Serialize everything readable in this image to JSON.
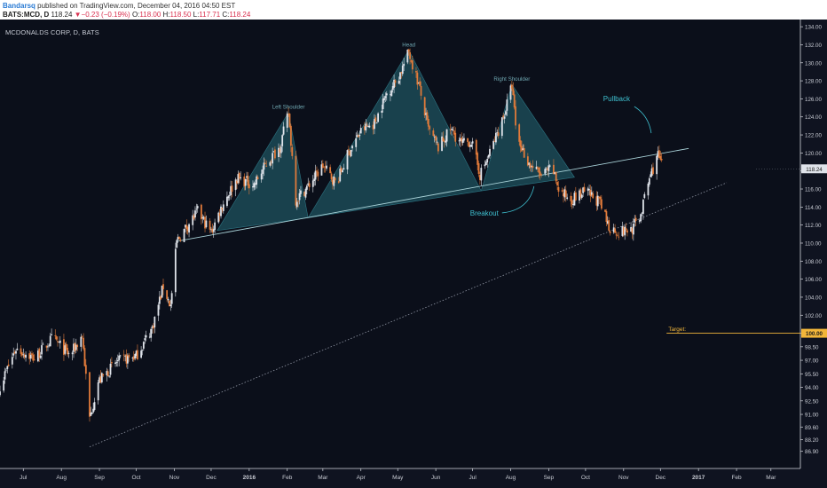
{
  "header": {
    "author": "Bandarsq",
    "published_text": "published on TradingView.com, December 04, 2016 04:50 EST",
    "symbol": "BATS:MCD, D",
    "last": "118.24",
    "change": "▼−0.23 (−0.19%)",
    "open_label": "O:",
    "open": "118.00",
    "high_label": "H:",
    "high": "118.50",
    "low_label": "L:",
    "low": "117.71",
    "close_label": "C:",
    "close": "118.24"
  },
  "colors": {
    "background": "#0b0f1a",
    "up_candle": "#dfe3ea",
    "down_candle": "#e07a3a",
    "pattern_fill": "#1e5561",
    "neckline": "#a9d2d8",
    "support_line": "#8f95a3",
    "annotation": "#3fc0d0",
    "target": "#f2b63a"
  },
  "chart_data": {
    "type": "candlestick",
    "title": "MCDONALDS CORP, D, BATS",
    "ylim": [
      85.0,
      134.8
    ],
    "y_ticks": [
      "86.90",
      "88.20",
      "89.60",
      "91.00",
      "92.50",
      "94.00",
      "95.50",
      "97.00",
      "98.50",
      "100.00",
      "102.00",
      "104.00",
      "106.00",
      "108.00",
      "110.00",
      "112.00",
      "114.00",
      "116.00",
      "118.00",
      "120.00",
      "122.00",
      "124.00",
      "126.00",
      "128.00",
      "130.00",
      "132.00",
      "134.00"
    ],
    "x_ticks": [
      "Jul",
      "Aug",
      "Sep",
      "Oct",
      "Nov",
      "Dec",
      "2016",
      "Feb",
      "Mar",
      "Apr",
      "May",
      "Jun",
      "Jul",
      "Aug",
      "Sep",
      "Oct",
      "Nov",
      "Dec",
      "2017",
      "Feb",
      "Mar"
    ],
    "x_range": [
      "2015-06-12",
      "2017-03-25"
    ],
    "current_price": "118.24",
    "target_price": "100.00",
    "anchors": [
      [
        "2015-06-12",
        94.2
      ],
      [
        "2015-06-25",
        98.3
      ],
      [
        "2015-07-10",
        97.2
      ],
      [
        "2015-07-25",
        99.5
      ],
      [
        "2015-08-08",
        97.5
      ],
      [
        "2015-08-18",
        99.8
      ],
      [
        "2015-08-24",
        90.5
      ],
      [
        "2015-08-31",
        94.6
      ],
      [
        "2015-09-15",
        96.8
      ],
      [
        "2015-10-01",
        97.5
      ],
      [
        "2015-10-14",
        100.6
      ],
      [
        "2015-10-23",
        105.2
      ],
      [
        "2015-10-29",
        103.0
      ],
      [
        "2015-11-03",
        110.2
      ],
      [
        "2015-11-12",
        112.0
      ],
      [
        "2015-11-20",
        113.5
      ],
      [
        "2015-12-01",
        111.2
      ],
      [
        "2015-12-10",
        114.2
      ],
      [
        "2015-12-22",
        117.2
      ],
      [
        "2016-01-05",
        116.5
      ],
      [
        "2016-01-15",
        118.8
      ],
      [
        "2016-01-26",
        120.7
      ],
      [
        "2016-02-02",
        124.4
      ],
      [
        "2016-02-08",
        114.8
      ],
      [
        "2016-02-18",
        116.3
      ],
      [
        "2016-03-01",
        118.6
      ],
      [
        "2016-03-12",
        116.6
      ],
      [
        "2016-03-22",
        120.1
      ],
      [
        "2016-04-02",
        122.6
      ],
      [
        "2016-04-12",
        123.3
      ],
      [
        "2016-04-22",
        126.6
      ],
      [
        "2016-05-01",
        128.2
      ],
      [
        "2016-05-10",
        131.2
      ],
      [
        "2016-05-18",
        127.6
      ],
      [
        "2016-05-26",
        122.6
      ],
      [
        "2016-06-03",
        120.6
      ],
      [
        "2016-06-13",
        122.6
      ],
      [
        "2016-06-22",
        121.0
      ],
      [
        "2016-06-30",
        121.3
      ],
      [
        "2016-07-07",
        117.6
      ],
      [
        "2016-07-12",
        119.0
      ],
      [
        "2016-07-20",
        121.8
      ],
      [
        "2016-07-27",
        124.4
      ],
      [
        "2016-08-02",
        127.5
      ],
      [
        "2016-08-06",
        121.7
      ],
      [
        "2016-08-16",
        118.8
      ],
      [
        "2016-08-26",
        117.5
      ],
      [
        "2016-09-04",
        118.3
      ],
      [
        "2016-09-10",
        115.6
      ],
      [
        "2016-09-20",
        114.9
      ],
      [
        "2016-10-01",
        115.7
      ],
      [
        "2016-10-12",
        114.6
      ],
      [
        "2016-10-20",
        111.8
      ],
      [
        "2016-10-28",
        111.2
      ],
      [
        "2016-11-08",
        111.6
      ],
      [
        "2016-11-15",
        113.2
      ],
      [
        "2016-11-22",
        117.2
      ],
      [
        "2016-11-29",
        119.8
      ],
      [
        "2016-12-03",
        118.2
      ]
    ],
    "annotations": [
      {
        "label": "Left Shoulder",
        "date": "2016-02-02",
        "price": 124.5
      },
      {
        "label": "Head",
        "date": "2016-05-10",
        "price": 131.4
      },
      {
        "label": "Right Shoulder",
        "date": "2016-08-02",
        "price": 127.6
      },
      {
        "label": "Breakout",
        "date": "2016-08-20",
        "price": 116.6
      },
      {
        "label": "Pullback",
        "date": "2016-11-30",
        "price": 121.6
      },
      {
        "label": "Target",
        "date": "2016-12-06",
        "price": 100.0
      }
    ],
    "neckline": [
      [
        "2015-11-03",
        110.2
      ],
      [
        "2016-12-24",
        120.5
      ]
    ],
    "support_line": [
      [
        "2015-08-24",
        87.4
      ],
      [
        "2017-01-24",
        116.7
      ]
    ],
    "pattern_triangles": [
      [
        [
          "2015-12-06",
          111.4
        ],
        [
          "2016-02-02",
          124.5
        ],
        [
          "2016-02-18",
          112.8
        ]
      ],
      [
        [
          "2016-02-18",
          112.8
        ],
        [
          "2016-05-10",
          131.4
        ],
        [
          "2016-07-08",
          115.8
        ]
      ],
      [
        [
          "2016-07-08",
          115.8
        ],
        [
          "2016-08-02",
          127.6
        ],
        [
          "2016-09-22",
          117.3
        ]
      ]
    ]
  }
}
